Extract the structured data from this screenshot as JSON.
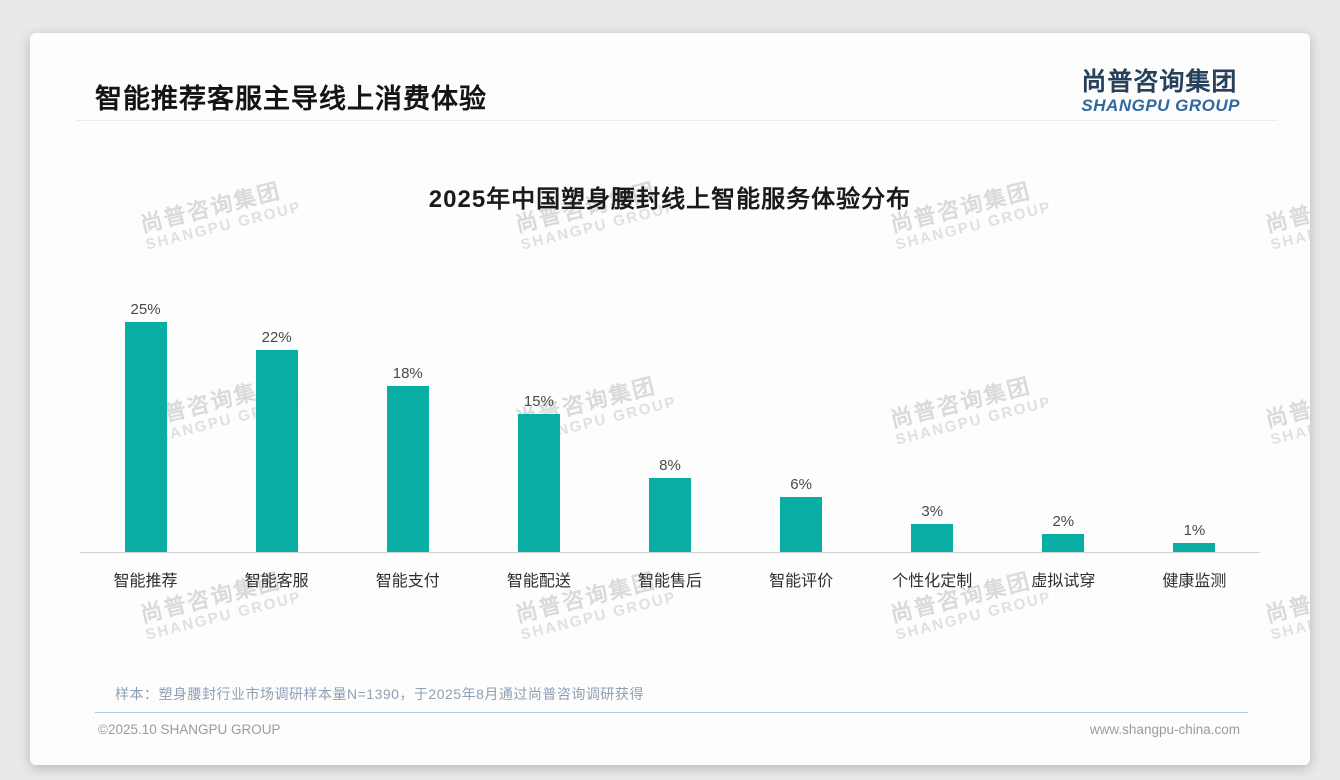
{
  "page": {
    "title": "智能推荐客服主导线上消费体验",
    "logo": {
      "zh": "尚普咨询集团",
      "en": "SHANGPU GROUP"
    },
    "watermark": {
      "zh": "尚普咨询集团",
      "en": "SHANGPU GROUP"
    },
    "note": "样本：塑身腰封行业市场调研样本量N=1390，于2025年8月通过尚普咨询调研获得",
    "footer": {
      "left": "©2025.10 SHANGPU GROUP",
      "right": "www.shangpu-china.com"
    },
    "colors": {
      "accent_bar": "#0aada3",
      "logo_zh": "#27415c",
      "logo_en": "#30689f",
      "note_text": "#8da0b4"
    }
  },
  "chart_data": {
    "type": "bar",
    "title": "2025年中国塑身腰封线上智能服务体验分布",
    "categories": [
      "智能推荐",
      "智能客服",
      "智能支付",
      "智能配送",
      "智能售后",
      "智能评价",
      "个性化定制",
      "虚拟试穿",
      "健康监测"
    ],
    "values": [
      25,
      22,
      18,
      15,
      8,
      6,
      3,
      2,
      1
    ],
    "value_labels": [
      "25%",
      "22%",
      "18%",
      "15%",
      "8%",
      "6%",
      "3%",
      "2%",
      "1%"
    ],
    "bar_color": "#0aada3",
    "xlabel": "",
    "ylabel": "",
    "ylim": [
      0,
      25
    ],
    "grid": false,
    "legend": "none",
    "data_labels": true
  }
}
